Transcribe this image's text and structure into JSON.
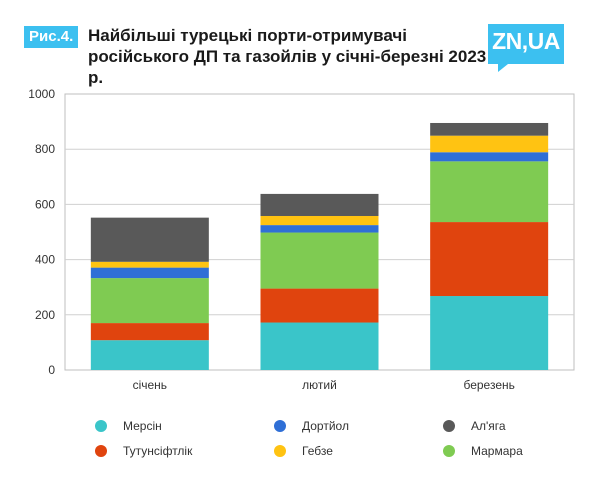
{
  "header": {
    "badge": "Рис.4.",
    "title": "Найбільші турецькі порти-отримувачі російського ДП та газойлів у січні-березні 2023 р.",
    "logo": "ZN,UA"
  },
  "chart_data": {
    "type": "bar",
    "stacked": true,
    "title": "Найбільші турецькі порти-отримувачі російського ДП та газойлів у січні-березні 2023 р.",
    "categories": [
      "січень",
      "лютий",
      "березень"
    ],
    "ylim": [
      0,
      1000
    ],
    "yticks": [
      0,
      200,
      400,
      600,
      800,
      1000
    ],
    "grid": true,
    "legend_position": "bottom",
    "series": [
      {
        "name": "Мерсін",
        "color": "#3ac5c9",
        "values": [
          108,
          172,
          268
        ]
      },
      {
        "name": "Тутунсіфтлік",
        "color": "#e0440e",
        "values": [
          62,
          123,
          268
        ]
      },
      {
        "name": "Мармара",
        "color": "#7fcb52",
        "values": [
          163,
          203,
          220
        ]
      },
      {
        "name": "Дортйол",
        "color": "#2f6fd6",
        "values": [
          38,
          27,
          33
        ]
      },
      {
        "name": "Гебзе",
        "color": "#ffc312",
        "values": [
          21,
          33,
          60
        ]
      },
      {
        "name": "Ал'яга",
        "color": "#595959",
        "values": [
          160,
          80,
          46
        ]
      }
    ],
    "legend_order": [
      "Мерсін",
      "Дортйол",
      "Ал'яга",
      "Тутунсіфтлік",
      "Гебзе",
      "Мармара"
    ]
  }
}
